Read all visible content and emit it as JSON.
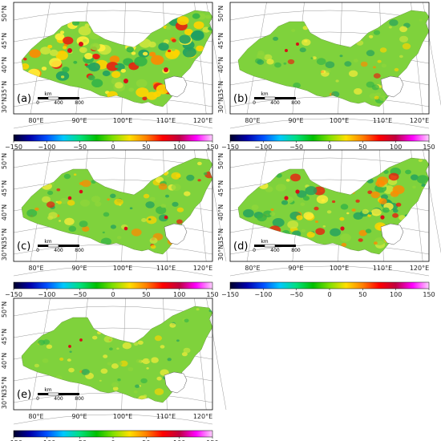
{
  "panels": [
    {
      "label": "(a)",
      "intensity": 1.0
    },
    {
      "label": "(b)",
      "intensity": 0.35
    },
    {
      "label": "(c)",
      "intensity": 0.55
    },
    {
      "label": "(d)",
      "intensity": 0.75
    },
    {
      "label": "(e)",
      "intensity": 0.3
    }
  ],
  "lat_labels": [
    "50°N",
    "45°N",
    "40°N",
    "35°N",
    "30°N"
  ],
  "lon_labels": [
    "80°E",
    "90°E",
    "100°E",
    "110°E",
    "120°E"
  ],
  "scalebar": {
    "unit": "km",
    "ticks": [
      "0",
      "400",
      "800"
    ]
  },
  "colorbar": {
    "ticks": [
      "−150",
      "−100",
      "−50",
      "0",
      "50",
      "100",
      "150"
    ],
    "range": [
      -150,
      150
    ],
    "colors": [
      "#00002a",
      "#0000aa",
      "#0050ff",
      "#00c8ff",
      "#00e080",
      "#00c000",
      "#80e000",
      "#ffe000",
      "#ff8000",
      "#ff0000",
      "#c00040",
      "#ff00ff",
      "#ffd0ff"
    ]
  },
  "colors": {
    "water": "#ffffff",
    "grid": "#9a9a9a",
    "frame": "#000000",
    "base": "#7fd23c"
  }
}
